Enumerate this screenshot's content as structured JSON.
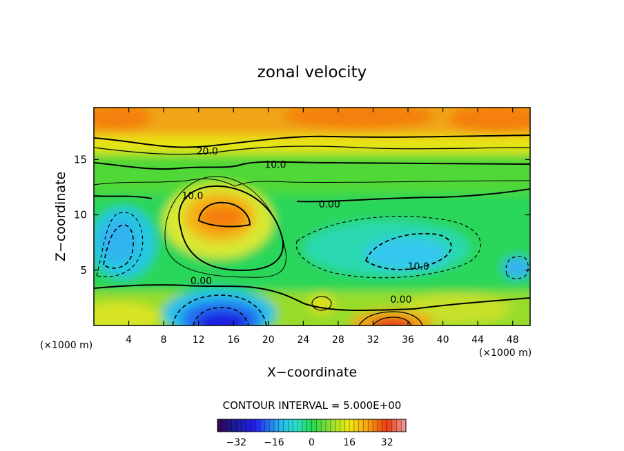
{
  "chart_data": {
    "type": "heatmap",
    "title": "zonal velocity",
    "xlabel": "X−coordinate",
    "ylabel": "Z−coordinate",
    "x_unit": "(×1000 m)",
    "x_unit_right": "(×1000 m)",
    "x_ticks": [
      4,
      8,
      12,
      16,
      20,
      24,
      28,
      32,
      36,
      40,
      44,
      48
    ],
    "y_ticks": [
      5,
      10,
      15
    ],
    "xlim": [
      0,
      50
    ],
    "ylim": [
      0,
      19.7
    ],
    "contour_interval_label": "CONTOUR INTERVAL = 5.000E+00",
    "contour_labels": [
      {
        "text": "20.0",
        "x": 13,
        "y": 15.7
      },
      {
        "text": "10.0",
        "x": 20.8,
        "y": 14.5
      },
      {
        "text": "10.0",
        "x": 11.3,
        "y": 11.7
      },
      {
        "text": "0.00",
        "x": 27,
        "y": 10.9
      },
      {
        "text": "0.00",
        "x": 12.3,
        "y": 4.0
      },
      {
        "text": "10.0",
        "x": 37.2,
        "y": 5.3
      },
      {
        "text": "0.00",
        "x": 35.2,
        "y": 2.3
      }
    ],
    "colorbar": {
      "range": [
        -40,
        40
      ],
      "ticks": [
        "−32",
        "−16",
        "0",
        "16",
        "32"
      ],
      "tick_values": [
        -32,
        -16,
        0,
        16,
        32
      ]
    },
    "features": [
      {
        "x": 15.5,
        "z": 0.4,
        "value": -30
      },
      {
        "x": 34.5,
        "z": 0.2,
        "value": 33
      },
      {
        "x": 16.0,
        "z": 9.9,
        "value": 24
      },
      {
        "x": 30,
        "z": 18.7,
        "value": 22
      },
      {
        "x": 4,
        "z": 18.5,
        "value": 20
      },
      {
        "x": 3.5,
        "z": 8.5,
        "value": -9
      },
      {
        "x": 36.5,
        "z": 6.3,
        "value": -11
      },
      {
        "x": 48.5,
        "z": 5.3,
        "value": -11
      },
      {
        "x": 25.8,
        "z": 2.0,
        "value": 14
      }
    ],
    "colors": {
      "dark_blue": "#1c1ce0",
      "cyan": "#28d7ea",
      "green": "#1fd73c",
      "yellow": "#f4e810",
      "orange": "#f47f0e",
      "red": "#df1818"
    }
  }
}
